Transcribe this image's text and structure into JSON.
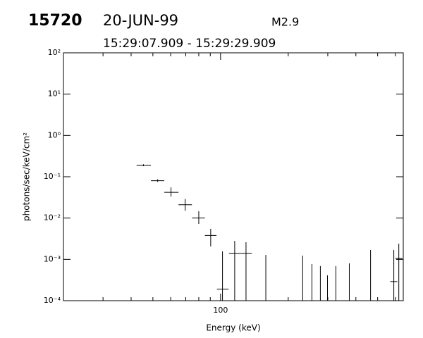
{
  "chart_data": {
    "type": "errorbar",
    "title": "15720",
    "date": "20-JUN-99",
    "class": "M2.9",
    "subtitle": "15:29:07.909 - 15:29:29.909",
    "x_label": "Energy (keV)",
    "y_label": "photons/sec/keV/cm²",
    "log_x": true,
    "log_y": true,
    "xlim": [
      20,
      650
    ],
    "ylim": [
      0.0001,
      100
    ],
    "xticks": [
      100
    ],
    "xminorticks": [
      20,
      30,
      40,
      50,
      60,
      70,
      80,
      90,
      200,
      300,
      400,
      500,
      600
    ],
    "yticks": [
      {
        "value": 0.0001,
        "label": "10⁻⁴"
      },
      {
        "value": 0.001,
        "label": "10⁻³"
      },
      {
        "value": 0.01,
        "label": "10⁻²"
      },
      {
        "value": 0.1,
        "label": "10⁻¹"
      },
      {
        "value": 1,
        "label": "10⁰"
      },
      {
        "value": 10,
        "label": "10¹"
      },
      {
        "value": 100,
        "label": "10²"
      }
    ],
    "color": "#000000",
    "x": [
      52.5,
      60.2,
      69.6,
      80.0,
      90.4,
      102,
      115.6,
      129.8,
      159,
      232,
      255,
      278,
      299,
      326,
      374,
      465,
      590,
      621,
      45.4
    ],
    "x_low": [
      49.0,
      56.2,
      65.0,
      74.6,
      85.2,
      96.4,
      109,
      122.6,
      null,
      null,
      null,
      null,
      null,
      null,
      null,
      null,
      null,
      null,
      42.3
    ],
    "x_high": [
      56.2,
      65.0,
      74.6,
      85.2,
      95.9,
      108.6,
      122.4,
      137.7,
      null,
      null,
      null,
      null,
      null,
      null,
      null,
      null,
      null,
      null,
      49.0
    ],
    "values": [
      0.08,
      0.042,
      0.021,
      0.01,
      0.0038,
      0.00019,
      0.0014,
      0.0014,
      null,
      null,
      null,
      null,
      null,
      null,
      null,
      null,
      0.00029,
      0.00105,
      0.19
    ],
    "y_low": [
      0.075,
      0.033,
      0.015,
      0.0072,
      0.00205,
      null,
      null,
      null,
      null,
      null,
      null,
      null,
      null,
      null,
      null,
      null,
      null,
      null,
      0.18
    ],
    "y_high": [
      0.087,
      0.055,
      0.029,
      0.0146,
      0.0055,
      0.00156,
      0.0028,
      0.0026,
      0.00128,
      0.00123,
      0.00077,
      0.00069,
      0.00041,
      0.00069,
      0.0008,
      0.00169,
      0.00169,
      0.0024,
      0.2
    ]
  }
}
